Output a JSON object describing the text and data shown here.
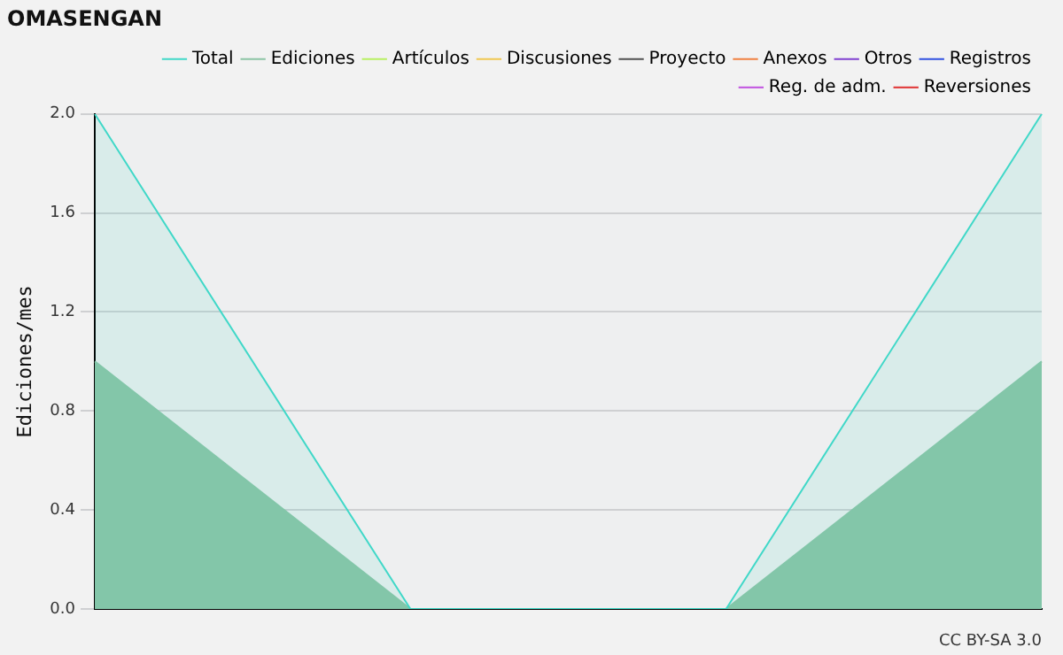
{
  "chart_data": {
    "type": "area",
    "title": "OMASENGAN",
    "ylabel": "Ediciones/mes",
    "categories": [
      null,
      null,
      null,
      null
    ],
    "series": [
      {
        "name": "Total",
        "color": "#40d8c8",
        "values": [
          2,
          0,
          0,
          2
        ]
      },
      {
        "name": "Ediciones",
        "color": "#8cc4a5",
        "values": [
          1,
          0,
          0,
          1
        ]
      },
      {
        "name": "Artículos",
        "color": "#b8f060",
        "values": [
          null,
          null,
          null,
          null
        ]
      },
      {
        "name": "Discusiones",
        "color": "#f0c850",
        "values": [
          null,
          null,
          null,
          null
        ]
      },
      {
        "name": "Proyecto",
        "color": "#505050",
        "values": [
          null,
          null,
          null,
          null
        ]
      },
      {
        "name": "Anexos",
        "color": "#f08040",
        "values": [
          null,
          null,
          null,
          null
        ]
      },
      {
        "name": "Otros",
        "color": "#8040d0",
        "values": [
          null,
          null,
          null,
          null
        ]
      },
      {
        "name": "Registros",
        "color": "#3050e0",
        "values": [
          null,
          null,
          null,
          null
        ]
      },
      {
        "name": "Reg. de adm.",
        "color": "#c050e0",
        "values": [
          null,
          null,
          null,
          null
        ]
      },
      {
        "name": "Reversiones",
        "color": "#e03030",
        "values": [
          null,
          null,
          null,
          null
        ]
      }
    ],
    "ylim": [
      0,
      2
    ],
    "yticks": [
      {
        "value": 0,
        "label": "0.0"
      },
      {
        "value": 0.4,
        "label": "0.4"
      },
      {
        "value": 0.8,
        "label": "0.8"
      },
      {
        "value": 1.2,
        "label": "1.2"
      },
      {
        "value": 1.6,
        "label": "1.6"
      },
      {
        "value": 2,
        "label": "2.0"
      }
    ],
    "grid": "y",
    "legend": "top right",
    "tick_labels": "y",
    "marker": "none",
    "annotations": [
      "CC BY-SA 3.0"
    ]
  }
}
